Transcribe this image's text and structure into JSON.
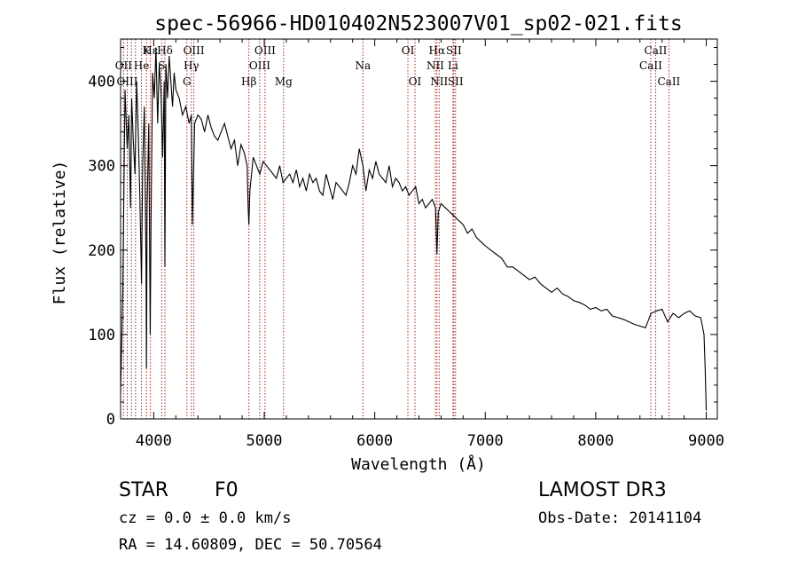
{
  "chart_data": {
    "type": "line",
    "title": "spec-56966-HD010402N523007V01_sp02-021.fits",
    "xlabel": "Wavelength (Å)",
    "ylabel": "Flux (relative)",
    "xlim": [
      3700,
      9100
    ],
    "ylim": [
      0,
      450
    ],
    "xticks": [
      4000,
      5000,
      6000,
      7000,
      8000,
      9000
    ],
    "yticks": [
      0,
      100,
      200,
      300,
      400
    ],
    "series": [
      {
        "name": "spectrum",
        "x": [
          3700,
          3720,
          3740,
          3760,
          3775,
          3790,
          3800,
          3815,
          3830,
          3845,
          3860,
          3875,
          3889,
          3900,
          3915,
          3930,
          3934,
          3940,
          3955,
          3968,
          3975,
          3990,
          4005,
          4020,
          4035,
          4050,
          4065,
          4080,
          4095,
          4101,
          4110,
          4125,
          4140,
          4155,
          4170,
          4185,
          4200,
          4230,
          4260,
          4290,
          4320,
          4340,
          4350,
          4370,
          4400,
          4430,
          4460,
          4490,
          4520,
          4550,
          4580,
          4610,
          4640,
          4670,
          4700,
          4730,
          4760,
          4790,
          4820,
          4845,
          4855,
          4861,
          4870,
          4885,
          4900,
          4930,
          4960,
          4990,
          5020,
          5050,
          5080,
          5110,
          5140,
          5170,
          5200,
          5230,
          5260,
          5290,
          5320,
          5350,
          5380,
          5410,
          5440,
          5470,
          5500,
          5530,
          5560,
          5590,
          5620,
          5650,
          5680,
          5710,
          5740,
          5770,
          5800,
          5830,
          5860,
          5893,
          5920,
          5950,
          5980,
          6010,
          6040,
          6070,
          6100,
          6130,
          6160,
          6190,
          6220,
          6250,
          6280,
          6310,
          6340,
          6370,
          6400,
          6430,
          6460,
          6490,
          6520,
          6550,
          6563,
          6575,
          6600,
          6640,
          6680,
          6720,
          6760,
          6800,
          6840,
          6880,
          6920,
          6960,
          7000,
          7050,
          7100,
          7150,
          7200,
          7250,
          7300,
          7350,
          7400,
          7450,
          7500,
          7550,
          7600,
          7650,
          7700,
          7750,
          7800,
          7850,
          7900,
          7950,
          8000,
          8050,
          8100,
          8150,
          8200,
          8250,
          8300,
          8350,
          8400,
          8450,
          8500,
          8550,
          8600,
          8650,
          8700,
          8750,
          8800,
          8850,
          8900,
          8950,
          8980,
          8990,
          9000
        ],
        "values": [
          30,
          150,
          390,
          320,
          360,
          250,
          380,
          330,
          290,
          400,
          340,
          260,
          160,
          300,
          370,
          180,
          60,
          250,
          350,
          100,
          230,
          410,
          380,
          440,
          350,
          420,
          390,
          310,
          400,
          180,
          420,
          380,
          430,
          400,
          370,
          410,
          390,
          380,
          360,
          370,
          350,
          360,
          230,
          350,
          360,
          355,
          340,
          360,
          345,
          335,
          330,
          340,
          350,
          335,
          320,
          330,
          300,
          325,
          315,
          300,
          250,
          230,
          270,
          290,
          310,
          300,
          290,
          305,
          300,
          295,
          290,
          285,
          300,
          280,
          285,
          290,
          280,
          295,
          275,
          285,
          270,
          290,
          280,
          285,
          270,
          265,
          290,
          275,
          260,
          280,
          275,
          270,
          265,
          280,
          300,
          290,
          320,
          300,
          270,
          295,
          285,
          305,
          290,
          285,
          280,
          300,
          275,
          285,
          280,
          270,
          275,
          265,
          270,
          275,
          255,
          260,
          250,
          255,
          260,
          250,
          195,
          245,
          255,
          250,
          245,
          240,
          235,
          230,
          220,
          225,
          215,
          210,
          205,
          200,
          195,
          190,
          180,
          180,
          175,
          170,
          165,
          168,
          160,
          155,
          150,
          155,
          148,
          145,
          140,
          138,
          135,
          130,
          132,
          128,
          130,
          122,
          120,
          118,
          115,
          112,
          110,
          108,
          125,
          128,
          130,
          115,
          125,
          120,
          125,
          128,
          122,
          120,
          100,
          60,
          10
        ]
      }
    ],
    "line_markers": [
      {
        "label": "Hδ",
        "x": 4101,
        "row": 0
      },
      {
        "label": "K",
        "x": 3934,
        "row": 0
      },
      {
        "label": "Hε",
        "x": 3970,
        "row": 0
      },
      {
        "label": "OIII",
        "x": 4363,
        "row": 0
      },
      {
        "label": "OIII",
        "x": 5007,
        "row": 0
      },
      {
        "label": "OI",
        "x": 6300,
        "row": 0
      },
      {
        "label": "Hα",
        "x": 6563,
        "row": 0
      },
      {
        "label": "SII",
        "x": 6716,
        "row": 0
      },
      {
        "label": "CaII",
        "x": 8542,
        "row": 0
      },
      {
        "label": "OII",
        "x": 3727,
        "row": 1
      },
      {
        "label": "He",
        "x": 3889,
        "row": 1
      },
      {
        "label": "S",
        "x": 4072,
        "row": 1
      },
      {
        "label": "Hγ",
        "x": 4340,
        "row": 1
      },
      {
        "label": "OIII",
        "x": 4959,
        "row": 1
      },
      {
        "label": "Na",
        "x": 5893,
        "row": 1
      },
      {
        "label": "NII",
        "x": 6548,
        "row": 1
      },
      {
        "label": "Li",
        "x": 6708,
        "row": 1
      },
      {
        "label": "CaII",
        "x": 8498,
        "row": 1
      },
      {
        "label": "OIII",
        "x": 3760,
        "row": 2
      },
      {
        "label": "G",
        "x": 4300,
        "row": 2
      },
      {
        "label": "Hβ",
        "x": 4861,
        "row": 2
      },
      {
        "label": "Mg",
        "x": 5175,
        "row": 2
      },
      {
        "label": "OI",
        "x": 6364,
        "row": 2
      },
      {
        "label": "NII",
        "x": 6583,
        "row": 2
      },
      {
        "label": "SII",
        "x": 6731,
        "row": 2
      },
      {
        "label": "CaII",
        "x": 8662,
        "row": 2
      }
    ],
    "marker_lines_x": [
      3727,
      3760,
      3798,
      3835,
      3889,
      3934,
      3970,
      4072,
      4101,
      4300,
      4340,
      4363,
      4861,
      4959,
      5007,
      5175,
      5893,
      6300,
      6364,
      6548,
      6563,
      6583,
      6708,
      6716,
      6731,
      8498,
      8542,
      8662
    ]
  },
  "info": {
    "object_class": "STAR",
    "subclass": "F0",
    "survey": "LAMOST DR3",
    "cz": "cz = 0.0 ± 0.0 km/s",
    "obs_date": "Obs-Date: 20141104",
    "coords": "RA =  14.60809, DEC =  50.70564"
  }
}
